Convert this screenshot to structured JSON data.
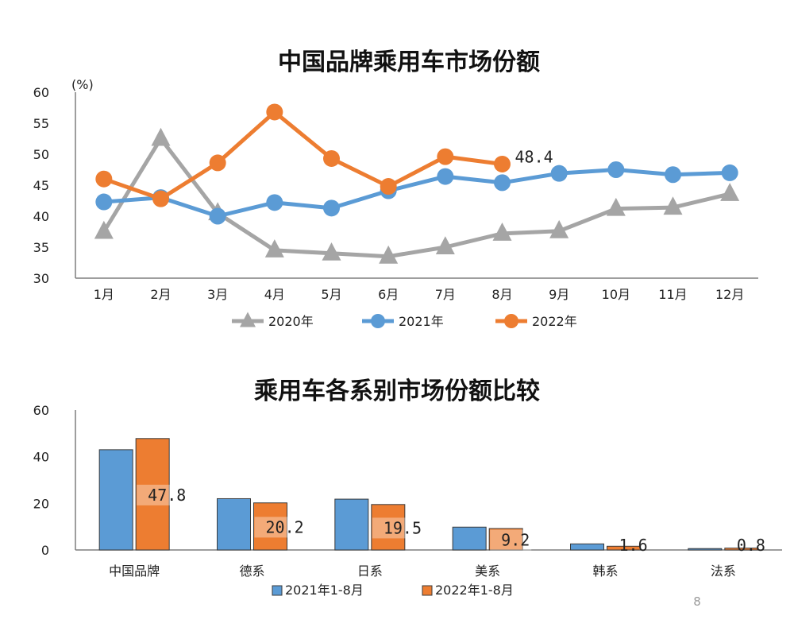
{
  "page_number": "8",
  "chart_data": [
    {
      "type": "line",
      "title": "中国品牌乘用车市场份额",
      "ylabel": "(%)",
      "ylim": [
        30,
        60
      ],
      "yticks": [
        30,
        35,
        40,
        45,
        50,
        55,
        60
      ],
      "categories": [
        "1月",
        "2月",
        "3月",
        "4月",
        "5月",
        "6月",
        "7月",
        "8月",
        "9月",
        "10月",
        "11月",
        "12月"
      ],
      "series": [
        {
          "name": "2020年",
          "color": "#a5a5a5",
          "marker": "triangle",
          "values": [
            37.5,
            52.5,
            40.5,
            34.5,
            34.0,
            33.5,
            35.0,
            37.2,
            37.6,
            41.2,
            41.4,
            43.6
          ]
        },
        {
          "name": "2021年",
          "color": "#5b9bd5",
          "marker": "circle",
          "values": [
            42.3,
            43.0,
            40.0,
            42.2,
            41.3,
            44.1,
            46.4,
            45.4,
            46.9,
            47.5,
            46.7,
            47.0
          ]
        },
        {
          "name": "2022年",
          "color": "#ed7d31",
          "marker": "circle",
          "values": [
            46.0,
            42.8,
            48.6,
            56.8,
            49.3,
            44.8,
            49.6,
            48.4,
            null,
            null,
            null,
            null
          ]
        }
      ],
      "annotations": [
        {
          "series": "2022年",
          "category": "8月",
          "text": "48.4"
        }
      ],
      "grid": false,
      "legend": "bottom"
    },
    {
      "type": "bar",
      "title": "乘用车各系别市场份额比较",
      "ylim": [
        0,
        60
      ],
      "yticks": [
        0,
        20,
        40,
        60
      ],
      "categories": [
        "中国品牌",
        "德系",
        "日系",
        "美系",
        "韩系",
        "法系"
      ],
      "series": [
        {
          "name": "2021年1-8月",
          "color": "#5b9bd5",
          "values": [
            43.0,
            22.0,
            21.8,
            9.8,
            2.6,
            0.6
          ]
        },
        {
          "name": "2022年1-8月",
          "color": "#ed7d31",
          "values": [
            47.8,
            20.2,
            19.5,
            9.2,
            1.6,
            0.8
          ]
        }
      ],
      "data_labels": [
        "47.8",
        "20.2",
        "19.5",
        "9.2",
        "1.6",
        "0.8"
      ],
      "grid": false,
      "legend": "bottom"
    }
  ]
}
